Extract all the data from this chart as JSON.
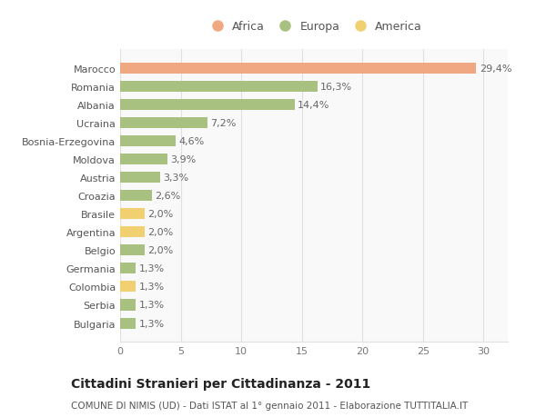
{
  "categories": [
    "Marocco",
    "Romania",
    "Albania",
    "Ucraina",
    "Bosnia-Erzegovina",
    "Moldova",
    "Austria",
    "Croazia",
    "Brasile",
    "Argentina",
    "Belgio",
    "Germania",
    "Colombia",
    "Serbia",
    "Bulgaria"
  ],
  "values": [
    29.4,
    16.3,
    14.4,
    7.2,
    4.6,
    3.9,
    3.3,
    2.6,
    2.0,
    2.0,
    2.0,
    1.3,
    1.3,
    1.3,
    1.3
  ],
  "labels": [
    "29,4%",
    "16,3%",
    "14,4%",
    "7,2%",
    "4,6%",
    "3,9%",
    "3,3%",
    "2,6%",
    "2,0%",
    "2,0%",
    "2,0%",
    "1,3%",
    "1,3%",
    "1,3%",
    "1,3%"
  ],
  "continent": [
    "Africa",
    "Europa",
    "Europa",
    "Europa",
    "Europa",
    "Europa",
    "Europa",
    "Europa",
    "America",
    "America",
    "Europa",
    "Europa",
    "America",
    "Europa",
    "Europa"
  ],
  "colors": {
    "Africa": "#F0A882",
    "Europa": "#A8C080",
    "America": "#F0D070"
  },
  "title": "Cittadini Stranieri per Cittadinanza - 2011",
  "subtitle": "COMUNE DI NIMIS (UD) - Dati ISTAT al 1° gennaio 2011 - Elaborazione TUTTITALIA.IT",
  "xlim": [
    0,
    32
  ],
  "xticks": [
    0,
    5,
    10,
    15,
    20,
    25,
    30
  ],
  "background_color": "#ffffff",
  "plot_bg_color": "#f9f9f9",
  "grid_color": "#e0e0e0",
  "bar_height": 0.6,
  "title_fontsize": 10,
  "subtitle_fontsize": 7.5,
  "tick_fontsize": 8,
  "label_fontsize": 8,
  "legend_fontsize": 9
}
